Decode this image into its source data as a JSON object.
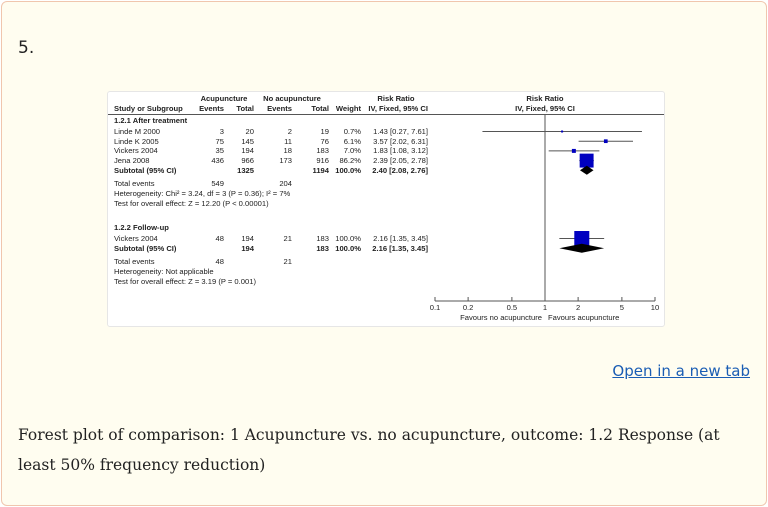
{
  "item_number": "5.",
  "open_link": "Open in a new tab",
  "caption": "Forest plot of comparison: 1 Acupuncture vs. no acupuncture, outcome: 1.2 Response (at least 50% frequency reduction)",
  "colors": {
    "box": "#0000c0",
    "diamond": "#000000",
    "link": "#1a5db4"
  },
  "chart_data": {
    "type": "forest",
    "headers": {
      "group1": "Acupuncture",
      "group2": "No acupuncture",
      "rr": "Risk Ratio",
      "rr_plot": "Risk Ratio",
      "study": "Study or Subgroup",
      "events1": "Events",
      "total1": "Total",
      "events2": "Events",
      "total2": "Total",
      "weight": "Weight",
      "method": "IV, Fixed, 95% CI",
      "method_plot": "IV, Fixed, 95% CI"
    },
    "subgroups": [
      {
        "title": "1.2.1 After treatment",
        "studies": [
          {
            "name": "Linde M 2000",
            "e1": "3",
            "t1": "20",
            "e2": "2",
            "t2": "19",
            "weight": "0.7%",
            "ci_text": "1.43 [0.27, 7.61]",
            "rr": 1.43,
            "lo": 0.27,
            "hi": 7.61,
            "w": 0.7
          },
          {
            "name": "Linde K 2005",
            "e1": "75",
            "t1": "145",
            "e2": "11",
            "t2": "76",
            "weight": "6.1%",
            "ci_text": "3.57 [2.02, 6.31]",
            "rr": 3.57,
            "lo": 2.02,
            "hi": 6.31,
            "w": 6.1
          },
          {
            "name": "Vickers 2004",
            "e1": "35",
            "t1": "194",
            "e2": "18",
            "t2": "183",
            "weight": "7.0%",
            "ci_text": "1.83 [1.08, 3.12]",
            "rr": 1.83,
            "lo": 1.08,
            "hi": 3.12,
            "w": 7.0
          },
          {
            "name": "Jena 2008",
            "e1": "436",
            "t1": "966",
            "e2": "173",
            "t2": "916",
            "weight": "86.2%",
            "ci_text": "2.39 [2.05, 2.78]",
            "rr": 2.39,
            "lo": 2.05,
            "hi": 2.78,
            "w": 86.2
          }
        ],
        "subtotal": {
          "name": "Subtotal (95% CI)",
          "t1": "1325",
          "t2": "1194",
          "weight": "100.0%",
          "ci_text": "2.40 [2.08, 2.76]",
          "rr": 2.4,
          "lo": 2.08,
          "hi": 2.76
        },
        "total_events": {
          "label": "Total events",
          "e1": "549",
          "e2": "204"
        },
        "heterogeneity": "Heterogeneity: Chi² = 3.24, df = 3 (P = 0.36); I² = 7%",
        "overall": "Test for overall effect: Z = 12.20 (P < 0.00001)"
      },
      {
        "title": "1.2.2 Follow-up",
        "studies": [
          {
            "name": "Vickers 2004",
            "e1": "48",
            "t1": "194",
            "e2": "21",
            "t2": "183",
            "weight": "100.0%",
            "ci_text": "2.16 [1.35, 3.45]",
            "rr": 2.16,
            "lo": 1.35,
            "hi": 3.45,
            "w": 100.0
          }
        ],
        "subtotal": {
          "name": "Subtotal (95% CI)",
          "t1": "194",
          "t2": "183",
          "weight": "100.0%",
          "ci_text": "2.16 [1.35, 3.45]",
          "rr": 2.16,
          "lo": 1.35,
          "hi": 3.45
        },
        "total_events": {
          "label": "Total events",
          "e1": "48",
          "e2": "21"
        },
        "heterogeneity": "Heterogeneity: Not applicable",
        "overall": "Test for overall effect: Z = 3.19 (P = 0.001)"
      }
    ],
    "x_scale": "log",
    "xlim": [
      0.1,
      10
    ],
    "x_ticks": [
      "0.1",
      "0.2",
      "0.5",
      "1",
      "2",
      "5",
      "10"
    ],
    "favours_left": "Favours no acupuncture",
    "favours_right": "Favours acupuncture"
  }
}
